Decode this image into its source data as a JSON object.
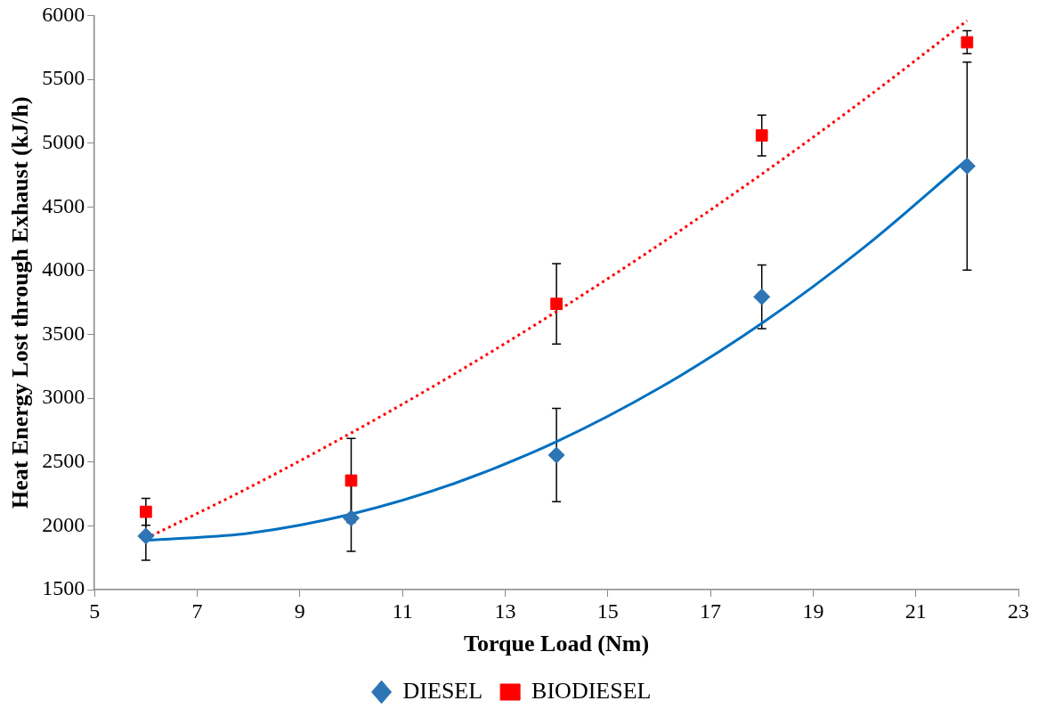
{
  "chart_data": {
    "type": "scatter",
    "xlabel": "Torque Load (Nm)",
    "ylabel": "Heat Energy Lost through Exhaust (kJ/h)",
    "x": [
      6,
      10,
      14,
      18,
      22
    ],
    "xlim": [
      5,
      23
    ],
    "xticks": [
      5,
      7,
      9,
      11,
      13,
      15,
      17,
      19,
      21,
      23
    ],
    "ylim": [
      1500,
      6000
    ],
    "yticks": [
      1500,
      2000,
      2500,
      3000,
      3500,
      4000,
      4500,
      5000,
      5500,
      6000
    ],
    "grid": false,
    "legend": "bottom",
    "series": [
      {
        "name": "DIESEL",
        "type": "scatter",
        "marker": "diamond",
        "color": "#2e75b6",
        "values": [
          1920,
          2060,
          2555,
          3795,
          4820
        ],
        "errors": [
          190,
          260,
          365,
          250,
          815
        ]
      },
      {
        "name": "BIODIESEL",
        "type": "scatter",
        "marker": "square",
        "color": "#ff0000",
        "values": [
          2110,
          2355,
          3740,
          5060,
          5790
        ],
        "errors": [
          105,
          330,
          315,
          160,
          90
        ]
      },
      {
        "type": "line",
        "marker": "none",
        "line_style": "solid",
        "color": "#0070c0",
        "x": [
          6,
          8,
          10,
          12,
          14,
          16,
          18,
          20,
          22
        ],
        "values": [
          1885,
          1942,
          2092,
          2331,
          2660,
          3079,
          3587,
          4185,
          4870
        ]
      },
      {
        "type": "line",
        "marker": "none",
        "line_style": "dotted",
        "color": "#ff0000",
        "x": [
          6,
          8,
          10,
          12,
          14,
          16,
          18,
          20,
          22
        ],
        "values": [
          1900,
          2298,
          2728,
          3188,
          3680,
          4203,
          4757,
          5343,
          5960
        ]
      }
    ]
  }
}
